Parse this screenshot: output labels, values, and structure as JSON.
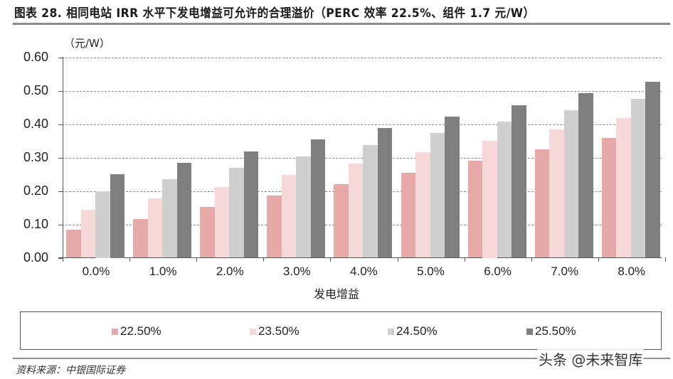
{
  "title": "图表 28. 相同电站 IRR 水平下发电增益可允许的合理溢价（PERC 效率 22.5%、组件 1.7 元/W）",
  "unit_label": "（元/W）",
  "source": "资料来源：中银国际证券",
  "watermark": "头条 @未来智库",
  "colors": {
    "s1": "#E8A9A9",
    "s2": "#F6D8D8",
    "s3": "#CFCFCF",
    "s4": "#7F7F7F"
  },
  "chart_data": {
    "type": "bar",
    "title": "相同电站 IRR 水平下发电增益可允许的合理溢价（PERC 效率 22.5%、组件 1.7 元/W）",
    "xlabel": "发电增益",
    "ylabel": "（元/W）",
    "ylim": [
      0,
      0.6
    ],
    "yticks": [
      "0.00",
      "0.10",
      "0.20",
      "0.30",
      "0.40",
      "0.50",
      "0.60"
    ],
    "grid": true,
    "legend_position": "bottom",
    "categories": [
      "0.0%",
      "1.0%",
      "2.0%",
      "3.0%",
      "4.0%",
      "5.0%",
      "6.0%",
      "7.0%",
      "8.0%"
    ],
    "series": [
      {
        "name": "22.50%",
        "color": "#E8A9A9",
        "values": [
          0.083,
          0.117,
          0.152,
          0.186,
          0.221,
          0.255,
          0.29,
          0.324,
          0.359
        ]
      },
      {
        "name": "23.50%",
        "color": "#F6D8D8",
        "values": [
          0.143,
          0.178,
          0.212,
          0.247,
          0.281,
          0.316,
          0.35,
          0.385,
          0.419
        ]
      },
      {
        "name": "24.50%",
        "color": "#CFCFCF",
        "values": [
          0.2,
          0.235,
          0.269,
          0.304,
          0.338,
          0.373,
          0.407,
          0.442,
          0.476
        ]
      },
      {
        "name": "25.50%",
        "color": "#7F7F7F",
        "values": [
          0.25,
          0.285,
          0.319,
          0.354,
          0.388,
          0.423,
          0.457,
          0.492,
          0.526
        ]
      }
    ]
  }
}
